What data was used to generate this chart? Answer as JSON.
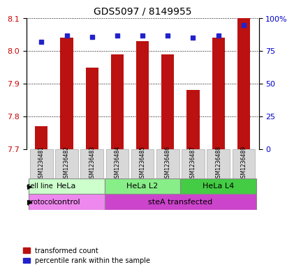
{
  "title": "GDS5097 / 8149955",
  "samples": [
    "GSM1236481",
    "GSM1236482",
    "GSM1236483",
    "GSM1236484",
    "GSM1236485",
    "GSM1236486",
    "GSM1236487",
    "GSM1236488",
    "GSM1236489"
  ],
  "bar_values": [
    7.77,
    8.04,
    7.95,
    7.99,
    8.03,
    7.99,
    7.88,
    8.04,
    8.1
  ],
  "percentile_values": [
    82,
    87,
    86,
    87,
    87,
    87,
    85,
    87,
    95
  ],
  "y_min": 7.7,
  "y_max": 8.1,
  "y_ticks": [
    7.7,
    7.8,
    7.9,
    8.0,
    8.1
  ],
  "y2_ticks": [
    0,
    25,
    50,
    75,
    100
  ],
  "bar_color": "#bb1111",
  "dot_color": "#2222cc",
  "cell_line_groups": [
    {
      "label": "HeLa",
      "start": 0,
      "end": 3,
      "color": "#ccffcc"
    },
    {
      "label": "HeLa L2",
      "start": 3,
      "end": 6,
      "color": "#88ee88"
    },
    {
      "label": "HeLa L4",
      "start": 6,
      "end": 9,
      "color": "#44cc44"
    }
  ],
  "protocol_groups": [
    {
      "label": "control",
      "start": 0,
      "end": 3,
      "color": "#ee88ee"
    },
    {
      "label": "steA transfected",
      "start": 3,
      "end": 9,
      "color": "#cc44cc"
    }
  ],
  "legend_items": [
    {
      "label": "transformed count",
      "color": "#bb1111",
      "marker": "s"
    },
    {
      "label": "percentile rank within the sample",
      "color": "#2222cc",
      "marker": "s"
    }
  ],
  "xlabel_color": "#cc0000",
  "ylabel_color": "#cc0000",
  "y2_color": "#0000cc"
}
